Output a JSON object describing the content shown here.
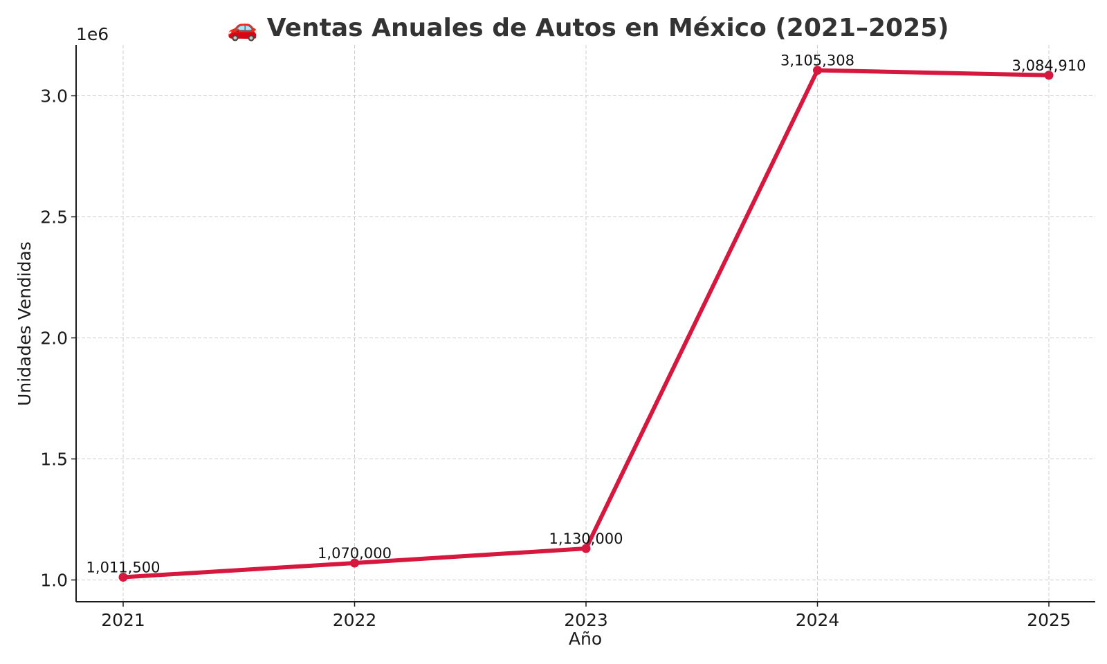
{
  "chart_data": {
    "type": "line",
    "title": "🚗 Ventas Anuales de Autos en México (2021–2025)",
    "xlabel": "Año",
    "ylabel": "Unidades Vendidas",
    "y_offset_label": "1e6",
    "x": [
      "2021",
      "2022",
      "2023",
      "2024",
      "2025"
    ],
    "values": [
      1011500,
      1070000,
      1130000,
      3105308,
      3084910
    ],
    "data_labels": [
      "1,011,500",
      "1,070,000",
      "1,130,000",
      "3,105,308",
      "3,084,910"
    ],
    "yticks": [
      1.0,
      1.5,
      2.0,
      2.5,
      3.0
    ],
    "ytick_labels": [
      "1.0",
      "1.5",
      "2.0",
      "2.5",
      "3.0"
    ],
    "ylim": [
      910000,
      3210000
    ],
    "grid": true,
    "line_color": "#d6173e",
    "marker": "circle"
  }
}
